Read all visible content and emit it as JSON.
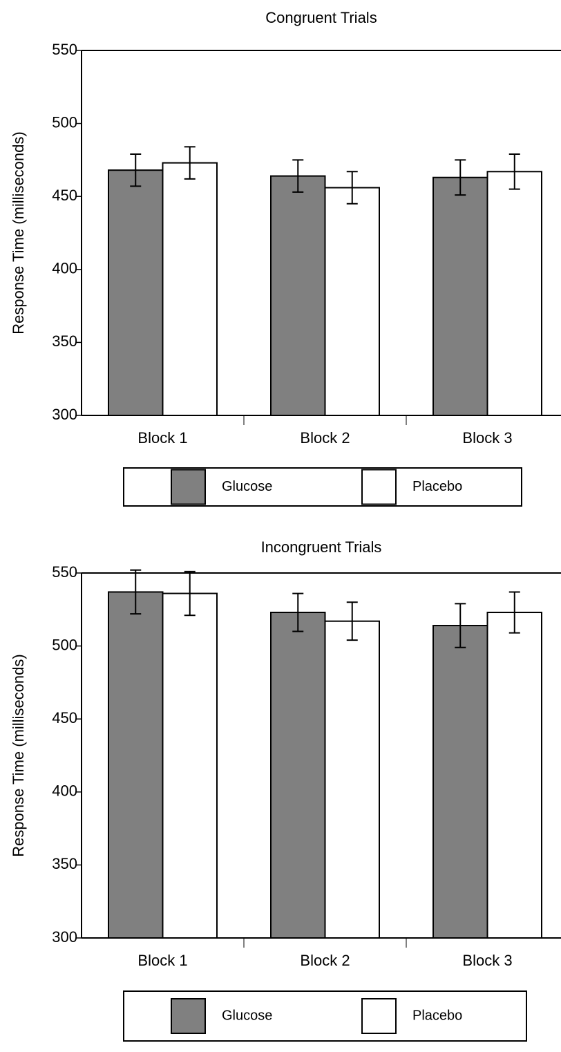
{
  "chart_data": [
    {
      "type": "bar",
      "title": "Congruent Trials",
      "y_label": "Response Time (milliseconds)",
      "categories": [
        "Block 1",
        "Block 2",
        "Block 3"
      ],
      "series": [
        {
          "name": "Glucose",
          "color": "#808080",
          "values": [
            468,
            464,
            463
          ],
          "errors": [
            11,
            11,
            12
          ]
        },
        {
          "name": "Placebo",
          "color": "#ffffff",
          "values": [
            473,
            456,
            467
          ],
          "errors": [
            11,
            11,
            12
          ]
        }
      ],
      "ylim": [
        300,
        550
      ],
      "yticks": [
        300,
        350,
        400,
        450,
        500,
        550
      ]
    },
    {
      "type": "bar",
      "title": "Incongruent Trials",
      "y_label": "Response Time (milliseconds)",
      "categories": [
        "Block 1",
        "Block 2",
        "Block 3"
      ],
      "series": [
        {
          "name": "Glucose",
          "color": "#808080",
          "values": [
            537,
            523,
            514
          ],
          "errors": [
            15,
            13,
            15
          ]
        },
        {
          "name": "Placebo",
          "color": "#ffffff",
          "values": [
            536,
            517,
            523
          ],
          "errors": [
            15,
            13,
            14
          ]
        }
      ],
      "ylim": [
        300,
        550
      ],
      "yticks": [
        300,
        350,
        400,
        450,
        500,
        550
      ]
    }
  ]
}
